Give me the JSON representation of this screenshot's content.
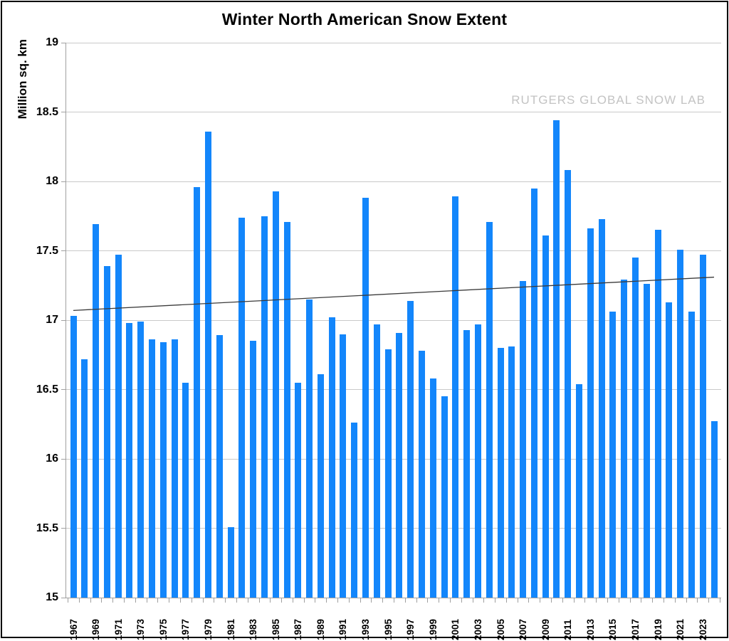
{
  "chart_data": {
    "type": "bar",
    "title": "Winter North American Snow Extent",
    "ylabel": "Million sq. km",
    "watermark": "RUTGERS GLOBAL SNOW LAB",
    "years": [
      1967,
      1968,
      1969,
      1970,
      1971,
      1972,
      1973,
      1974,
      1975,
      1976,
      1977,
      1978,
      1979,
      1980,
      1981,
      1982,
      1983,
      1984,
      1985,
      1986,
      1987,
      1988,
      1989,
      1990,
      1991,
      1992,
      1993,
      1994,
      1995,
      1996,
      1997,
      1998,
      1999,
      2000,
      2001,
      2002,
      2003,
      2004,
      2005,
      2006,
      2007,
      2008,
      2009,
      2010,
      2011,
      2012,
      2013,
      2014,
      2015,
      2016,
      2017,
      2018,
      2019,
      2020,
      2021,
      2022,
      2023,
      2024
    ],
    "values": [
      17.03,
      16.72,
      17.69,
      17.39,
      17.47,
      16.98,
      16.99,
      16.86,
      16.84,
      16.86,
      16.55,
      17.96,
      18.36,
      16.89,
      15.51,
      17.74,
      16.85,
      17.75,
      17.93,
      17.71,
      16.55,
      17.15,
      16.61,
      17.02,
      16.9,
      16.26,
      17.88,
      16.97,
      16.79,
      16.91,
      17.14,
      16.78,
      16.58,
      16.45,
      17.89,
      16.93,
      16.97,
      17.71,
      16.8,
      16.81,
      17.28,
      17.95,
      17.61,
      18.44,
      18.08,
      16.54,
      17.66,
      17.73,
      17.06,
      17.29,
      17.45,
      17.26,
      17.65,
      17.13,
      17.51,
      17.06,
      17.47,
      16.27
    ],
    "ylim": [
      15,
      19
    ],
    "yticks": [
      15,
      15.5,
      16,
      16.5,
      17,
      17.5,
      18,
      18.5,
      19
    ],
    "xtick_labels": [
      "1967",
      "1969",
      "1971",
      "1973",
      "1975",
      "1977",
      "1979",
      "1981",
      "1983",
      "1985",
      "1987",
      "1989",
      "1991",
      "1993",
      "1995",
      "1997",
      "1999",
      "2001",
      "2003",
      "2005",
      "2007",
      "2009",
      "2011",
      "2013",
      "2015",
      "2017",
      "2019",
      "2021",
      "2023"
    ],
    "grid": "horizontal",
    "legend": "none",
    "bar_color": "#1386fb",
    "grid_color": "#c9c9c9",
    "axis_color": "#a0a0a0",
    "text_color": "#000000",
    "watermark_color": "#c3c3c3",
    "trend_line": {
      "start_value": 17.07,
      "end_value": 17.31,
      "color": "#3a3a3a"
    }
  }
}
